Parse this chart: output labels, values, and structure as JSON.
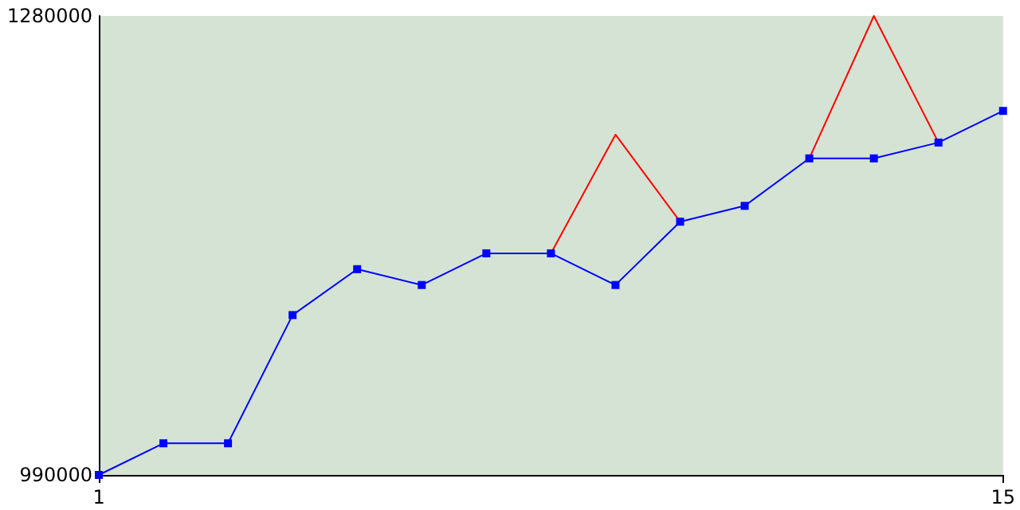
{
  "chart_data": {
    "type": "line",
    "x": [
      1,
      2,
      3,
      4,
      5,
      6,
      7,
      8,
      9,
      10,
      11,
      12,
      13,
      14,
      15
    ],
    "series": [
      {
        "color": "#ff0000",
        "marker": "none",
        "values": [
          null,
          null,
          null,
          null,
          null,
          null,
          null,
          1130000,
          1205000,
          1150000,
          null,
          1190000,
          1280000,
          1200000,
          null
        ]
      },
      {
        "color": "#0000ff",
        "marker": "square",
        "values": [
          990000,
          1010000,
          1010000,
          1091000,
          1120000,
          1110000,
          1130000,
          1130000,
          1110000,
          1150000,
          1160000,
          1190000,
          1190000,
          1200000,
          1220000
        ]
      }
    ],
    "xlim": [
      1,
      15
    ],
    "xticks": [
      1,
      15
    ],
    "ylim": [
      990000,
      1280000
    ],
    "yticks": [
      990000,
      1280000
    ],
    "grid": false
  }
}
